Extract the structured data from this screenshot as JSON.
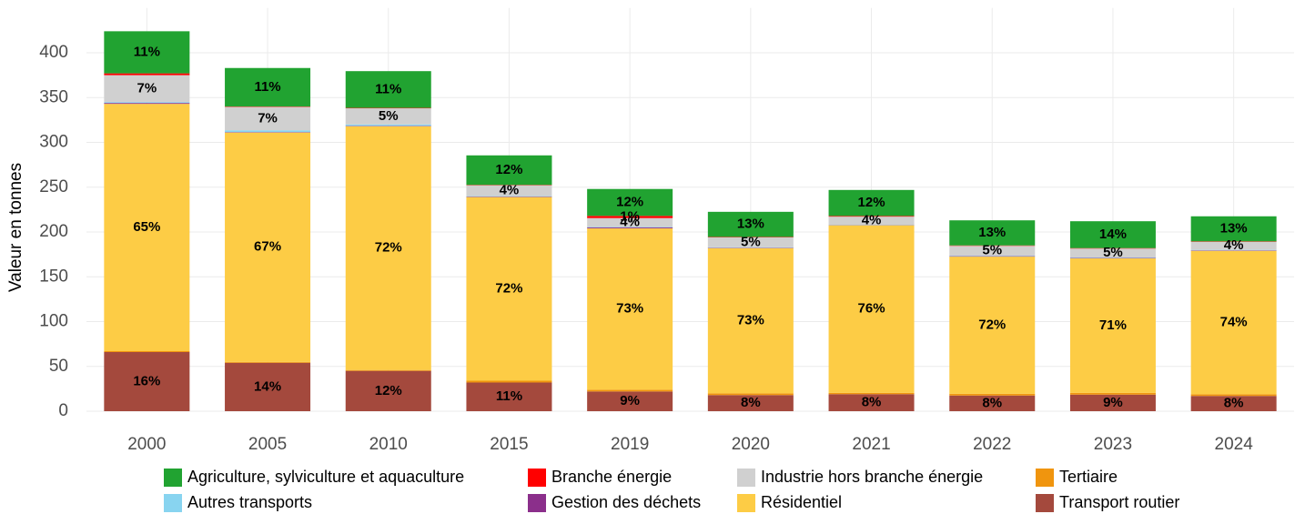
{
  "chart_data": {
    "type": "bar",
    "stacked": true,
    "ylabel": "Valeur en tonnes",
    "categories": [
      "2000",
      "2005",
      "2010",
      "2015",
      "2019",
      "2020",
      "2021",
      "2022",
      "2023",
      "2024"
    ],
    "ylim": [
      0,
      450
    ],
    "yticks": [
      0,
      50,
      100,
      150,
      200,
      250,
      300,
      350,
      400
    ],
    "grid": true,
    "series": [
      {
        "name": "Agriculture, sylviculture et aquaculture",
        "color": "#21a331",
        "values": [
          47,
          43,
          41,
          33,
          30,
          28,
          29,
          28,
          30,
          28
        ],
        "labels": [
          "11%",
          "11%",
          "11%",
          "12%",
          "12%",
          "13%",
          "12%",
          "13%",
          "14%",
          "13%"
        ]
      },
      {
        "name": "Branche énergie",
        "color": "#ff0000",
        "values": [
          2,
          0.5,
          0.5,
          0.5,
          2.5,
          0.5,
          0.8,
          0.5,
          0.5,
          0.5
        ],
        "labels": [
          null,
          null,
          null,
          null,
          "1%",
          null,
          null,
          null,
          null,
          null
        ]
      },
      {
        "name": "Industrie hors branche énergie",
        "color": "#d0d0d0",
        "values": [
          30,
          26,
          18,
          12,
          10,
          11,
          9,
          11,
          10,
          9
        ],
        "labels": [
          "7%",
          "7%",
          "5%",
          "4%",
          "4%",
          "5%",
          "4%",
          "5%",
          "5%",
          "4%"
        ]
      },
      {
        "name": "Tertiaire",
        "color": "#f0950e",
        "values": [
          1,
          1,
          1,
          2,
          2,
          2,
          1.5,
          2,
          2,
          2
        ]
      },
      {
        "name": "Autres transports",
        "color": "#88d4f0",
        "values": [
          1,
          2,
          1.5,
          0.5,
          0.5,
          0.5,
          0.3,
          0.5,
          0.5,
          0.5
        ]
      },
      {
        "name": "Gestion des déchets",
        "color": "#8b2f8b",
        "values": [
          1,
          0.5,
          0.5,
          0.5,
          1,
          0.5,
          0.3,
          0.5,
          0.5,
          0.5
        ]
      },
      {
        "name": "Résidentiel",
        "color": "#fdcc45",
        "values": [
          276,
          256,
          272,
          205,
          180,
          162,
          187,
          153,
          150,
          160
        ],
        "labels": [
          "65%",
          "67%",
          "72%",
          "72%",
          "73%",
          "73%",
          "76%",
          "72%",
          "71%",
          "74%"
        ]
      },
      {
        "name": "Transport routier",
        "color": "#a4493d",
        "values": [
          66,
          54,
          45,
          32,
          22,
          18,
          19,
          17.5,
          18.5,
          17
        ],
        "labels": [
          "16%",
          "14%",
          "12%",
          "11%",
          "9%",
          "8%",
          "8%",
          "8%",
          "9%",
          "8%"
        ]
      }
    ]
  }
}
